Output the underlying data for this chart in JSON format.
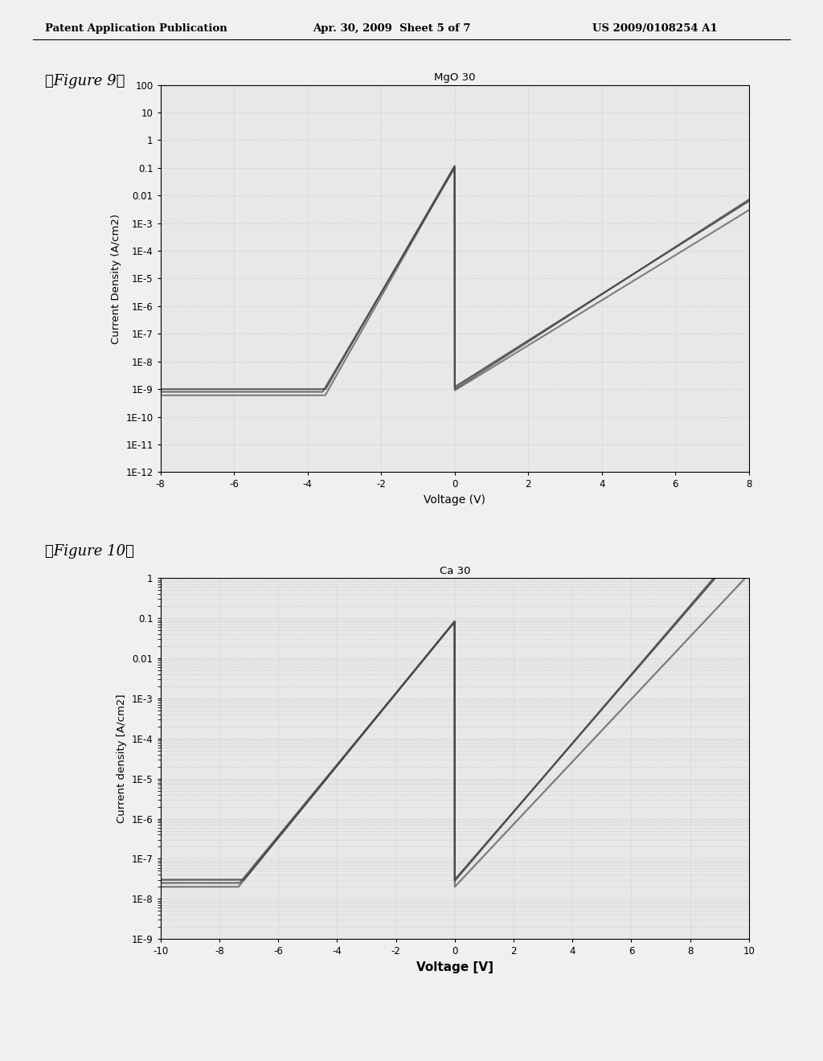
{
  "fig9_title": "MgO 30",
  "fig9_xlabel": "Voltage (V)",
  "fig9_ylabel": "Current Density (A/cm2)",
  "fig9_xlim": [
    -8,
    8
  ],
  "fig9_ylim_log": [
    1e-12,
    100
  ],
  "fig9_yticks": [
    100,
    10,
    1,
    0.1,
    0.01,
    0.001,
    0.0001,
    1e-05,
    1e-06,
    1e-07,
    1e-08,
    1e-09,
    1e-10,
    1e-11,
    1e-12
  ],
  "fig9_ytick_labels": [
    "100",
    "10",
    "1",
    "0.1",
    "0.01",
    "1E-3",
    "1E-4",
    "1E-5",
    "1E-6",
    "1E-7",
    "1E-8",
    "1E-9",
    "1E-10",
    "1E-11",
    "1E-12"
  ],
  "fig9_xticks": [
    -8,
    -6,
    -4,
    -2,
    0,
    2,
    4,
    6,
    8
  ],
  "fig10_title": "Ca 30",
  "fig10_xlabel": "Voltage [V]",
  "fig10_ylabel": "Current density [A/cm2]",
  "fig10_xlim": [
    -10,
    10
  ],
  "fig10_ylim_log": [
    1e-09,
    1
  ],
  "fig10_yticks": [
    1,
    0.1,
    0.01,
    0.001,
    0.0001,
    1e-05,
    1e-06,
    1e-07,
    1e-08,
    1e-09
  ],
  "fig10_ytick_labels": [
    "1",
    "0.1",
    "0.01",
    "1E-3",
    "1E-4",
    "1E-5",
    "1E-6",
    "1E-7",
    "1E-8",
    "1E-9"
  ],
  "fig10_xticks": [
    -10,
    -8,
    -6,
    -4,
    -2,
    0,
    2,
    4,
    6,
    8,
    10
  ],
  "header_left": "Patent Application Publication",
  "header_mid": "Apr. 30, 2009  Sheet 5 of 7",
  "header_right": "US 2009/0108254 A1",
  "line_color": "#444444",
  "line_color2": "#777777",
  "bg_color": "#e8e8e8",
  "grid_color": "#bbbbbb",
  "page_color": "#f0f0f0"
}
